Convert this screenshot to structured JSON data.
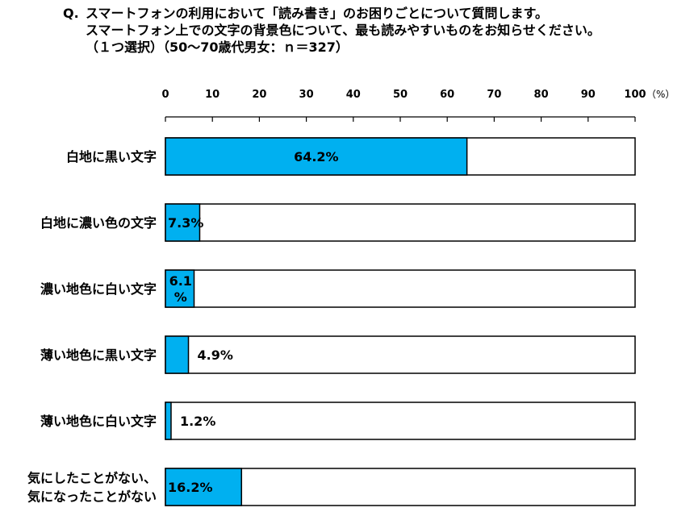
{
  "question": {
    "label": "Q.",
    "lines": [
      "スマートフォンの利用において「読み書き」のお困りごとについて質問します。",
      "スマートフォン上での文字の背景色について、最も読みやすいものをお知らせください。",
      "（１つ選択）（50～70歳代男女：ｎ＝327）"
    ]
  },
  "chart_data": {
    "type": "bar",
    "orientation": "horizontal",
    "stacked_to_100": true,
    "xlim": [
      0,
      100
    ],
    "xticks": [
      "0",
      "10",
      "20",
      "30",
      "40",
      "50",
      "60",
      "70",
      "80",
      "90",
      "100"
    ],
    "x_unit": "（%）",
    "grid": false,
    "categories": [
      [
        "白地に黒い文字"
      ],
      [
        "白地に濃い色の文字"
      ],
      [
        "濃い地色に白い文字"
      ],
      [
        "薄い地色に黒い文字"
      ],
      [
        "薄い地色に白い文字"
      ],
      [
        "気にしたことがない、",
        "気になったことがない"
      ]
    ],
    "values": [
      64.2,
      7.3,
      6.1,
      4.9,
      1.2,
      16.2
    ],
    "value_labels": [
      [
        "64.2%"
      ],
      [
        "7.3%"
      ],
      [
        "6.1",
        "%"
      ],
      [
        "4.9%"
      ],
      [
        "1.2%"
      ],
      [
        "16.2%"
      ]
    ],
    "colors": {
      "bar_fill": "#00b0f0",
      "bar_border": "#000000",
      "background": "#ffffff"
    }
  }
}
